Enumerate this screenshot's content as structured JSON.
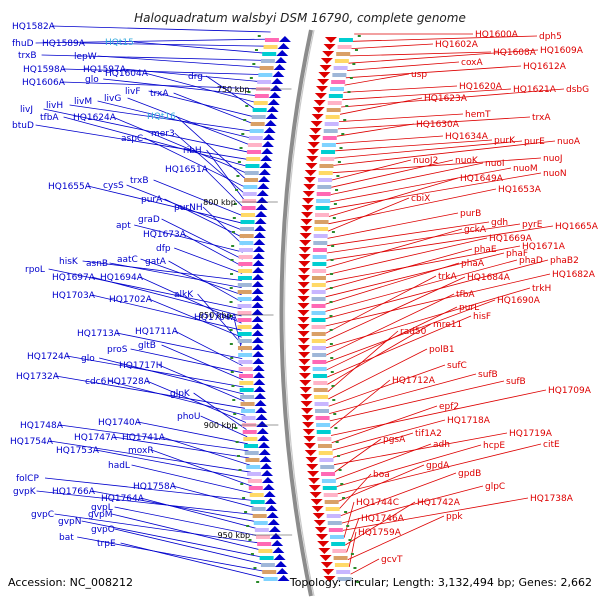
{
  "title": "Haloquadratum walsbyi DSM 16790, complete genome",
  "footer": {
    "accession": "Accession: NC_008212",
    "topology": "Topology: circular; Length: 3,132,494 bp; Genes: 2,662"
  },
  "colors": {
    "forward": "#0000cc",
    "reverse": "#dd0000",
    "rna": "#33aadd",
    "backbone": "#909090",
    "tick": "#2a8a2a"
  },
  "scale_marks": [
    "750 kbp",
    "800 kbp",
    "850 kbp",
    "900 kbp",
    "950 kbp"
  ],
  "left_labels": [
    {
      "text": "HQ1582A",
      "rna": false
    },
    {
      "text": "fhuD",
      "rna": false
    },
    {
      "text": "HQ1589A",
      "rna": false
    },
    {
      "text": "HQt15",
      "rna": true
    },
    {
      "text": "trxB",
      "rna": false
    },
    {
      "text": "lepW",
      "rna": false
    },
    {
      "text": "HQ1598A",
      "rna": false
    },
    {
      "text": "HQ1597A",
      "rna": false
    },
    {
      "text": "HQ1606A",
      "rna": false
    },
    {
      "text": "glo",
      "rna": false
    },
    {
      "text": "HQ1604A",
      "rna": false
    },
    {
      "text": "drg",
      "rna": false
    },
    {
      "text": "livF",
      "rna": false
    },
    {
      "text": "trxA",
      "rna": false
    },
    {
      "text": "livH",
      "rna": false
    },
    {
      "text": "livM",
      "rna": false
    },
    {
      "text": "livG",
      "rna": false
    },
    {
      "text": "livJ",
      "rna": false
    },
    {
      "text": "btuD",
      "rna": false
    },
    {
      "text": "tfbA",
      "rna": false
    },
    {
      "text": "HQ1624A",
      "rna": false
    },
    {
      "text": "HQt16",
      "rna": true
    },
    {
      "text": "aspC",
      "rna": false
    },
    {
      "text": "mer3",
      "rna": false
    },
    {
      "text": "ribH",
      "rna": false
    },
    {
      "text": "HQ1651A",
      "rna": false
    },
    {
      "text": "trxB",
      "rna": false
    },
    {
      "text": "HQ1655A",
      "rna": false
    },
    {
      "text": "cysS",
      "rna": false
    },
    {
      "text": "purA",
      "rna": false
    },
    {
      "text": "purNH",
      "rna": false
    },
    {
      "text": "apt",
      "rna": false
    },
    {
      "text": "graD",
      "rna": false
    },
    {
      "text": "HQ1673A",
      "rna": false
    },
    {
      "text": "dfp",
      "rna": false
    },
    {
      "text": "hisK",
      "rna": false
    },
    {
      "text": "asnB",
      "rna": false
    },
    {
      "text": "aatC",
      "rna": false
    },
    {
      "text": "gatA",
      "rna": false
    },
    {
      "text": "rpoL",
      "rna": false
    },
    {
      "text": "HQ1697A",
      "rna": false
    },
    {
      "text": "HQ1694A",
      "rna": false
    },
    {
      "text": "HQ1703A",
      "rna": false
    },
    {
      "text": "HQ1702A",
      "rna": false
    },
    {
      "text": "alkK",
      "rna": false
    },
    {
      "text": "HQ1704A",
      "rna": false
    },
    {
      "text": "HQ1713A",
      "rna": false
    },
    {
      "text": "HQ1711A",
      "rna": false
    },
    {
      "text": "proS",
      "rna": false
    },
    {
      "text": "gltB",
      "rna": false
    },
    {
      "text": "HQ1724A",
      "rna": false
    },
    {
      "text": "glo",
      "rna": false
    },
    {
      "text": "HQ1717H",
      "rna": false
    },
    {
      "text": "HQ1732A",
      "rna": false
    },
    {
      "text": "cdc6",
      "rna": false
    },
    {
      "text": "HQ1728A",
      "rna": false
    },
    {
      "text": "glpK",
      "rna": false
    },
    {
      "text": "phoU",
      "rna": false
    },
    {
      "text": "HQ1740A",
      "rna": false
    },
    {
      "text": "HQ1748A",
      "rna": false
    },
    {
      "text": "HQ1747A",
      "rna": false
    },
    {
      "text": "HQ1741A",
      "rna": false
    },
    {
      "text": "HQ1754A",
      "rna": false
    },
    {
      "text": "HQ1753A",
      "rna": false
    },
    {
      "text": "moxR",
      "rna": false
    },
    {
      "text": "hadL",
      "rna": false
    },
    {
      "text": "folCP",
      "rna": false
    },
    {
      "text": "HQ1758A",
      "rna": false
    },
    {
      "text": "gvpK",
      "rna": false
    },
    {
      "text": "HQ1766A",
      "rna": false
    },
    {
      "text": "HQ1764A",
      "rna": false
    },
    {
      "text": "gvpL",
      "rna": false
    },
    {
      "text": "gvpC",
      "rna": false
    },
    {
      "text": "gvpM",
      "rna": false
    },
    {
      "text": "gvpN",
      "rna": false
    },
    {
      "text": "gvpO",
      "rna": false
    },
    {
      "text": "bat",
      "rna": false
    },
    {
      "text": "trpE",
      "rna": false
    }
  ],
  "right_labels": [
    {
      "text": "HQ1600A"
    },
    {
      "text": "dph5"
    },
    {
      "text": "HQ1602A"
    },
    {
      "text": "HQ1608A"
    },
    {
      "text": "HQ1609A"
    },
    {
      "text": "coxA"
    },
    {
      "text": "HQ1612A"
    },
    {
      "text": "usp"
    },
    {
      "text": "HQ1620A"
    },
    {
      "text": "HQ1621A"
    },
    {
      "text": "dsbG"
    },
    {
      "text": "HQ1623A"
    },
    {
      "text": "hemT"
    },
    {
      "text": "trxA"
    },
    {
      "text": "HQ1630A"
    },
    {
      "text": "HQ1634A"
    },
    {
      "text": "purK"
    },
    {
      "text": "purE"
    },
    {
      "text": "nuoA"
    },
    {
      "text": "nuoJ"
    },
    {
      "text": "nuoJ2"
    },
    {
      "text": "nuoK"
    },
    {
      "text": "nuoI"
    },
    {
      "text": "nuoM"
    },
    {
      "text": "nuoN"
    },
    {
      "text": "HQ1649A"
    },
    {
      "text": "HQ1653A"
    },
    {
      "text": "cbiX"
    },
    {
      "text": "purB"
    },
    {
      "text": "gdh"
    },
    {
      "text": "pyrE"
    },
    {
      "text": "HQ1665A"
    },
    {
      "text": "gckA"
    },
    {
      "text": "HQ1669A"
    },
    {
      "text": "HQ1671A"
    },
    {
      "text": "phaE"
    },
    {
      "text": "phaF"
    },
    {
      "text": "phaA"
    },
    {
      "text": "phaD"
    },
    {
      "text": "phaB2"
    },
    {
      "text": "HQ1682A"
    },
    {
      "text": "trkA"
    },
    {
      "text": "HQ1684A"
    },
    {
      "text": "trkH"
    },
    {
      "text": "tfbA"
    },
    {
      "text": "HQ1690A"
    },
    {
      "text": "purL"
    },
    {
      "text": "hisF"
    },
    {
      "text": "mre11"
    },
    {
      "text": "rad50"
    },
    {
      "text": "polB1"
    },
    {
      "text": "sufC"
    },
    {
      "text": "sufB"
    },
    {
      "text": "sufB"
    },
    {
      "text": "HQ1712A"
    },
    {
      "text": "HQ1709A"
    },
    {
      "text": "epf2"
    },
    {
      "text": "HQ1718A"
    },
    {
      "text": "tif1A2"
    },
    {
      "text": "HQ1719A"
    },
    {
      "text": "pgsA"
    },
    {
      "text": "adh"
    },
    {
      "text": "hcpE"
    },
    {
      "text": "citE"
    },
    {
      "text": "gpdA"
    },
    {
      "text": "boa"
    },
    {
      "text": "gpdB"
    },
    {
      "text": "glpC"
    },
    {
      "text": "HQ1738A"
    },
    {
      "text": "HQ1744C"
    },
    {
      "text": "HQ1742A"
    },
    {
      "text": "HQ1746A"
    },
    {
      "text": "ppk"
    },
    {
      "text": "HQ1759A"
    },
    {
      "text": "gcvT"
    }
  ]
}
